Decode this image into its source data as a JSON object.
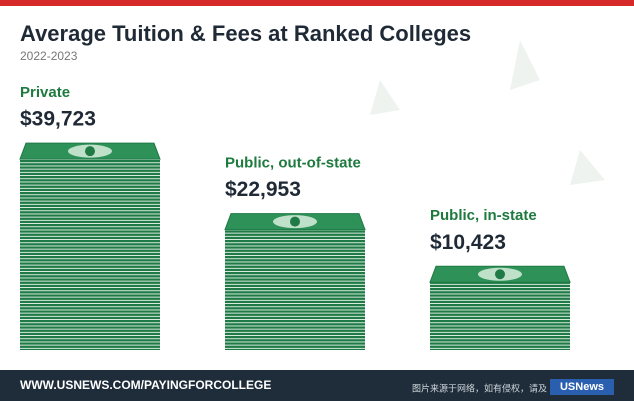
{
  "chart_data": {
    "type": "bar",
    "title": "Average Tuition & Fees at Ranked Colleges",
    "subtitle": "2022-2023",
    "categories": [
      "Private",
      "Public, out-of-state",
      "Public, in-state"
    ],
    "values": [
      39723,
      22953,
      10423
    ],
    "value_labels": [
      "$39,723",
      "$22,953",
      "$10,423"
    ],
    "color": "#1f7a45",
    "footer": "WWW.USNEWS.COM/PAYINGFORCOLLEGE",
    "logo": "USNews",
    "watermark": "图片来源于网络，如有侵权，请及"
  }
}
